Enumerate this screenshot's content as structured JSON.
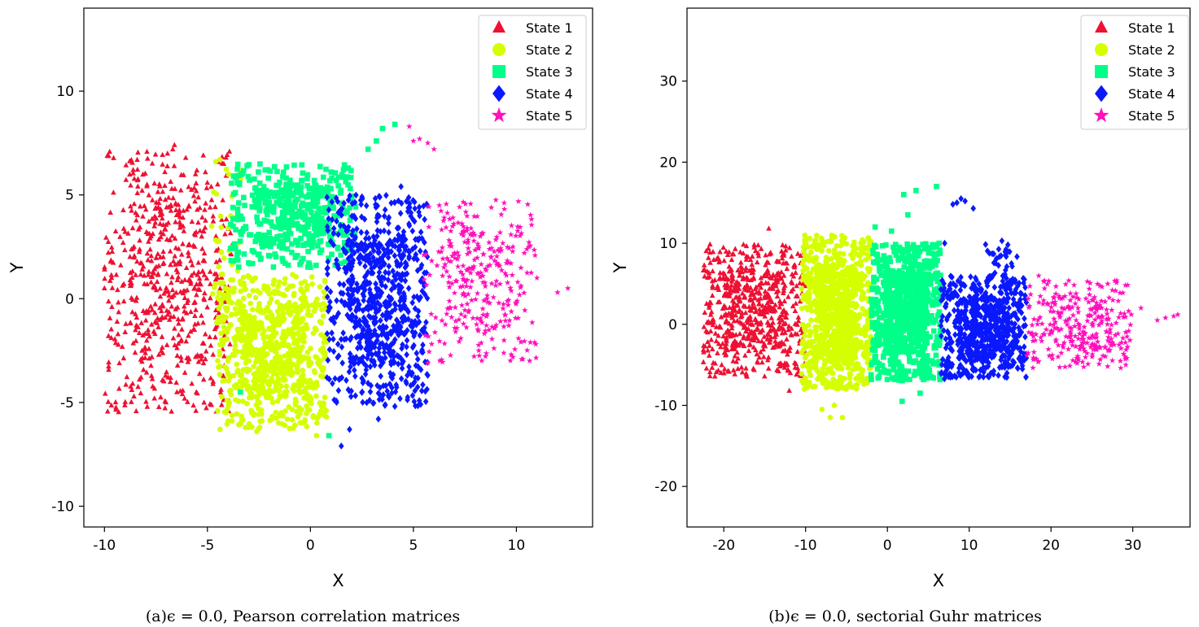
{
  "legend": {
    "entries": [
      {
        "label": "State 1",
        "color": "#ee1133",
        "marker": "triangle"
      },
      {
        "label": "State 2",
        "color": "#d4ff00",
        "marker": "circle"
      },
      {
        "label": "State 3",
        "color": "#00ff88",
        "marker": "square"
      },
      {
        "label": "State 4",
        "color": "#0a18ff",
        "marker": "diamond"
      },
      {
        "label": "State 5",
        "color": "#ff11bb",
        "marker": "star"
      }
    ],
    "placement": "top-right"
  },
  "chart_data": [
    {
      "type": "scatter",
      "caption": "(a)ϵ = 0.0, Pearson correlation matrices",
      "xlabel": "X",
      "ylabel": "Y",
      "xlim": [
        -11,
        13.7
      ],
      "ylim": [
        -11,
        14
      ],
      "xticks": [
        -10,
        -5,
        0,
        5,
        10
      ],
      "xtick_labels": [
        "-10",
        "-5",
        "0",
        "5",
        "10"
      ],
      "yticks": [
        -10,
        -5,
        0,
        5,
        10
      ],
      "ytick_labels": [
        "-10",
        "-5",
        "0",
        "5",
        "10"
      ],
      "grid": false,
      "legend": "top-right",
      "series": [
        {
          "name": "State 1",
          "color": "#ee1133",
          "marker": "triangle",
          "clusters": [
            {
              "x": [
                -10,
                -3.8
              ],
              "y": [
                -5.5,
                7.2
              ],
              "n": 620
            }
          ],
          "points": [
            [
              -6.6,
              7.4
            ],
            [
              -10.0,
              0.5
            ],
            [
              -9.8,
              -1.8
            ],
            [
              -8.3,
              -3.9
            ],
            [
              -5.2,
              6.9
            ]
          ]
        },
        {
          "name": "State 2",
          "color": "#d4ff00",
          "marker": "circle",
          "clusters": [
            {
              "x": [
                -4.5,
                0.8
              ],
              "y": [
                -6.3,
                1.2
              ],
              "n": 850
            },
            {
              "x": [
                -4.8,
                -3.2
              ],
              "y": [
                -1.5,
                6.6
              ],
              "n": 40
            }
          ],
          "points": [
            [
              -4.6,
              6.6
            ],
            [
              -4.4,
              6.7
            ],
            [
              -2.6,
              -6.4
            ],
            [
              0.3,
              -6.6
            ]
          ]
        },
        {
          "name": "State 3",
          "color": "#00ff88",
          "marker": "square",
          "clusters": [
            {
              "x": [
                -3.9,
                2.2
              ],
              "y": [
                1.5,
                6.5
              ],
              "n": 500
            }
          ],
          "points": [
            [
              2.8,
              7.2
            ],
            [
              3.5,
              8.2
            ],
            [
              4.1,
              8.4
            ],
            [
              3.2,
              7.6
            ],
            [
              0.9,
              -6.6
            ],
            [
              -3.4,
              -4.5
            ]
          ]
        },
        {
          "name": "State 4",
          "color": "#0a18ff",
          "marker": "diamond",
          "clusters": [
            {
              "x": [
                0.8,
                5.7
              ],
              "y": [
                -5.2,
                5.0
              ],
              "n": 800
            }
          ],
          "points": [
            [
              1.5,
              -7.1
            ],
            [
              3.3,
              -5.8
            ],
            [
              1.9,
              -6.3
            ],
            [
              4.4,
              5.4
            ]
          ]
        },
        {
          "name": "State 5",
          "color": "#ff11bb",
          "marker": "star",
          "clusters": [
            {
              "x": [
                5.5,
                11
              ],
              "y": [
                -3.2,
                4.8
              ],
              "n": 320
            }
          ],
          "points": [
            [
              12.5,
              0.5
            ],
            [
              12.0,
              0.3
            ],
            [
              11.0,
              1.0
            ],
            [
              5.3,
              7.7
            ],
            [
              5.7,
              7.5
            ],
            [
              4.8,
              8.3
            ],
            [
              6.0,
              7.2
            ],
            [
              5.0,
              7.6
            ]
          ]
        }
      ]
    },
    {
      "type": "scatter",
      "caption": "(b)ϵ = 0.0, sectorial Guhr matrices",
      "xlabel": "X",
      "ylabel": "Y",
      "xlim": [
        -24.5,
        37
      ],
      "ylim": [
        -25,
        39
      ],
      "xticks": [
        -20,
        -10,
        0,
        10,
        20,
        30
      ],
      "xtick_labels": [
        "-20",
        "-10",
        "0",
        "10",
        "20",
        "30"
      ],
      "yticks": [
        -20,
        -10,
        0,
        10,
        20,
        30
      ],
      "ytick_labels": [
        "-20",
        "-10",
        "0",
        "10",
        "20",
        "30"
      ],
      "grid": false,
      "legend": "top-right",
      "series": [
        {
          "name": "State 1",
          "color": "#ee1133",
          "marker": "triangle",
          "clusters": [
            {
              "x": [
                -22.5,
                -10
              ],
              "y": [
                -6.5,
                10
              ],
              "n": 650
            }
          ],
          "points": [
            [
              -14.5,
              11.8
            ],
            [
              -12.0,
              -8.2
            ],
            [
              -22.0,
              -1.0
            ],
            [
              -21.5,
              1.5
            ]
          ]
        },
        {
          "name": "State 2",
          "color": "#d4ff00",
          "marker": "circle",
          "clusters": [
            {
              "x": [
                -10.5,
                -2
              ],
              "y": [
                -8,
                11
              ],
              "n": 1050
            }
          ],
          "points": [
            [
              -7.0,
              -11.5
            ],
            [
              -5.5,
              -11.5
            ],
            [
              -8.0,
              -10.5
            ],
            [
              -6.5,
              -10.0
            ]
          ]
        },
        {
          "name": "State 3",
          "color": "#00ff88",
          "marker": "square",
          "clusters": [
            {
              "x": [
                -2,
                6.5
              ],
              "y": [
                -7,
                10
              ],
              "n": 900
            }
          ],
          "points": [
            [
              2.0,
              16.0
            ],
            [
              3.5,
              16.5
            ],
            [
              6.0,
              17.0
            ],
            [
              2.5,
              13.5
            ],
            [
              4.0,
              -8.5
            ],
            [
              1.8,
              -9.5
            ],
            [
              0.5,
              11.5
            ],
            [
              -1.5,
              12.0
            ]
          ]
        },
        {
          "name": "State 4",
          "color": "#0a18ff",
          "marker": "diamond",
          "clusters": [
            {
              "x": [
                6.5,
                17
              ],
              "y": [
                -7,
                6
              ],
              "n": 700
            },
            {
              "x": [
                12,
                16
              ],
              "y": [
                5,
                10
              ],
              "n": 30
            }
          ],
          "points": [
            [
              8.5,
              15.0
            ],
            [
              9.0,
              15.5
            ],
            [
              9.5,
              15.2
            ],
            [
              8.0,
              14.8
            ],
            [
              10.5,
              14.3
            ],
            [
              7.0,
              10.0
            ],
            [
              14.0,
              10.3
            ]
          ]
        },
        {
          "name": "State 5",
          "color": "#ff11bb",
          "marker": "star",
          "clusters": [
            {
              "x": [
                17,
                30
              ],
              "y": [
                -5.5,
                5.5
              ],
              "n": 300
            }
          ],
          "points": [
            [
              35.0,
              1.0
            ],
            [
              35.5,
              1.2
            ],
            [
              34.0,
              0.8
            ],
            [
              31.0,
              2.0
            ],
            [
              33.0,
              0.5
            ],
            [
              18.5,
              6.0
            ]
          ]
        }
      ]
    }
  ]
}
